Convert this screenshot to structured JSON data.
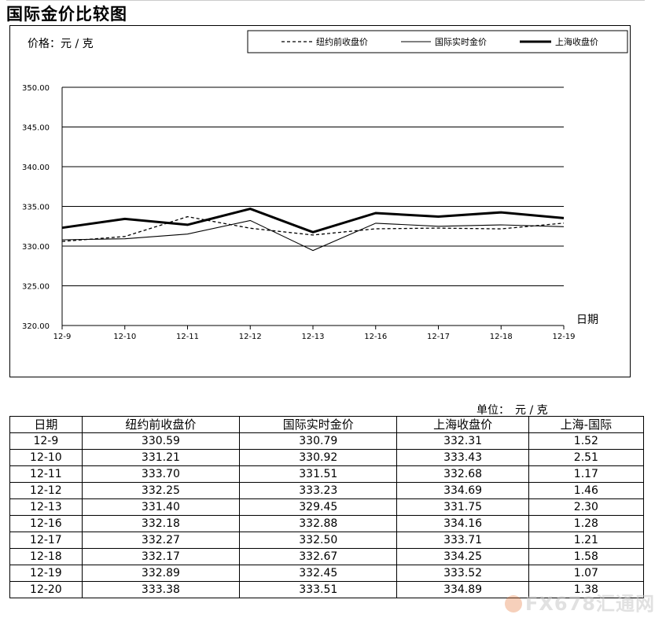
{
  "title": "国际金价比较图",
  "chart_data": {
    "type": "line",
    "ylabel": "价格：元 / 克",
    "xlabel": "日期",
    "categories": [
      "12-9",
      "12-10",
      "12-11",
      "12-12",
      "12-13",
      "12-16",
      "12-17",
      "12-18",
      "12-19"
    ],
    "y_ticks": [
      "350.00",
      "345.00",
      "340.00",
      "335.00",
      "330.00",
      "325.00",
      "320.00"
    ],
    "ylim": [
      320,
      350
    ],
    "grid": true,
    "legend_position": "top",
    "series": [
      {
        "name": "纽约前收盘价",
        "style": "dashed",
        "values": [
          330.59,
          331.21,
          333.7,
          332.25,
          331.4,
          332.18,
          332.27,
          332.17,
          332.89
        ]
      },
      {
        "name": "国际实时金价",
        "style": "thin",
        "values": [
          330.79,
          330.92,
          331.51,
          333.23,
          329.45,
          332.88,
          332.5,
          332.67,
          332.45
        ]
      },
      {
        "name": "上海收盘价",
        "style": "thick",
        "values": [
          332.31,
          333.43,
          332.68,
          334.69,
          331.75,
          334.16,
          333.71,
          334.25,
          333.52
        ]
      }
    ]
  },
  "table": {
    "unit": "单位：　元 / 克",
    "headers": [
      "日期",
      "纽约前收盘价",
      "国际实时金价",
      "上海收盘价",
      "上海-国际"
    ],
    "rows": [
      [
        "12-9",
        "330.59",
        "330.79",
        "332.31",
        "1.52"
      ],
      [
        "12-10",
        "331.21",
        "330.92",
        "333.43",
        "2.51"
      ],
      [
        "12-11",
        "333.70",
        "331.51",
        "332.68",
        "1.17"
      ],
      [
        "12-12",
        "332.25",
        "333.23",
        "334.69",
        "1.46"
      ],
      [
        "12-13",
        "331.40",
        "329.45",
        "331.75",
        "2.30"
      ],
      [
        "12-16",
        "332.18",
        "332.88",
        "334.16",
        "1.28"
      ],
      [
        "12-17",
        "332.27",
        "332.50",
        "333.71",
        "1.21"
      ],
      [
        "12-18",
        "332.17",
        "332.67",
        "334.25",
        "1.58"
      ],
      [
        "12-19",
        "332.89",
        "332.45",
        "333.52",
        "1.07"
      ],
      [
        "12-20",
        "333.38",
        "333.51",
        "334.89",
        "1.38"
      ]
    ]
  },
  "watermark": "FX678汇通网"
}
